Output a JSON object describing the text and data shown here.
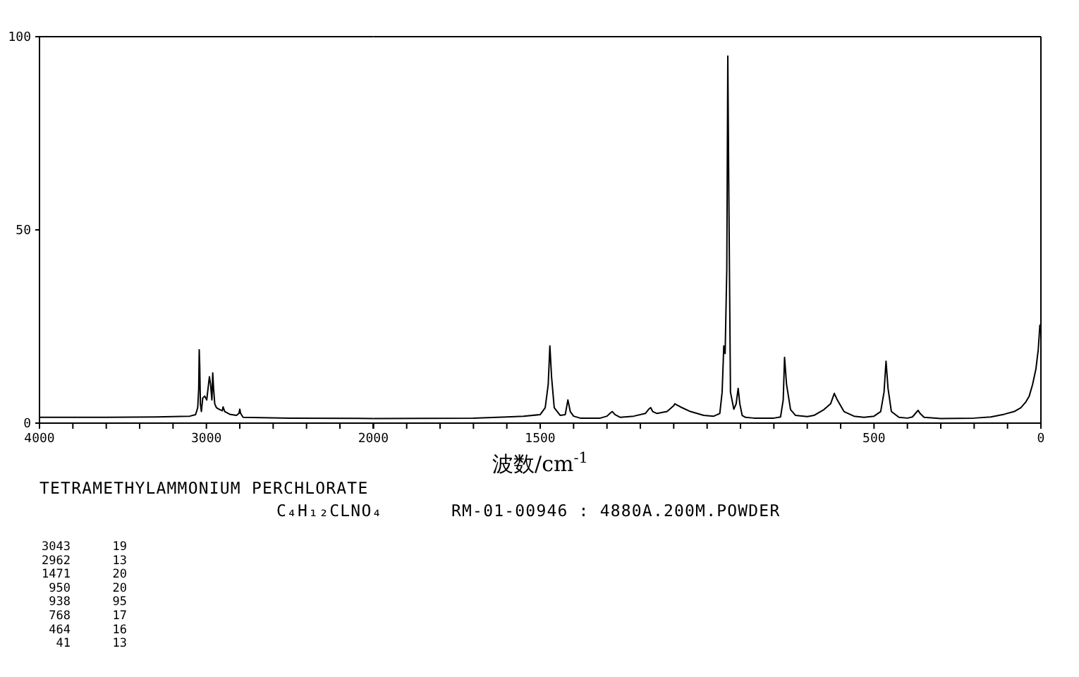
{
  "chart_data": [
    {
      "type": "line",
      "title": "TETRAMETHYLAMMONIUM PERCHLORATE",
      "subtitle": "C₄H₁₂CLNO₄",
      "annotations": [
        "RM-01-00946 : 4880A.200M.POWDER",
        "3043 19",
        "2962 13",
        "1471 20",
        "950 20",
        "938 95",
        "768 17",
        "464 16",
        "41 13"
      ],
      "xlim": [
        4000,
        2000
      ],
      "ylim": [
        0,
        100
      ],
      "xticks": [
        4000,
        {
          "value": 3800,
          "label": null
        },
        {
          "value": 3600,
          "label": null
        },
        {
          "value": 3400,
          "label": null
        },
        {
          "value": 3200,
          "label": null
        },
        3000,
        {
          "value": 2800,
          "label": null
        },
        {
          "value": 2600,
          "label": null
        },
        {
          "value": 2400,
          "label": null
        },
        {
          "value": 2200,
          "label": null
        },
        2000
      ],
      "yticks": [
        0,
        50,
        100
      ],
      "marker": "none",
      "line_style": "solid",
      "series": [
        {
          "color": "#000000",
          "x": [
            4000,
            3600,
            3300,
            3100,
            3065,
            3052,
            3046,
            3043,
            3040,
            3036,
            3030,
            3022,
            3010,
            2998,
            2990,
            2982,
            2975,
            2967,
            2962,
            2957,
            2950,
            2940,
            2920,
            2905,
            2900,
            2890,
            2860,
            2820,
            2805,
            2800,
            2795,
            2780,
            2500,
            2000
          ],
          "values": [
            1.5,
            1.5,
            1.6,
            1.8,
            2.2,
            4,
            9,
            19,
            15,
            5,
            3,
            6.5,
            7,
            6,
            9,
            12,
            10,
            6,
            13,
            9,
            5,
            4,
            3.5,
            3.2,
            4.2,
            3,
            2.3,
            2,
            2.5,
            3.6,
            2.5,
            1.5,
            1.3,
            1.2
          ]
        }
      ]
    },
    {
      "type": "line",
      "xlabel": "波数/cm$^{-1}$",
      "xlim": [
        2000,
        0
      ],
      "ylim": [
        0,
        100
      ],
      "tick_labels": "x",
      "xticks": [
        {
          "value": 1900,
          "label": null
        },
        {
          "value": 1800,
          "label": null
        },
        {
          "value": 1700,
          "label": null
        },
        {
          "value": 1600,
          "label": null
        },
        1500,
        {
          "value": 1400,
          "label": null
        },
        {
          "value": 1300,
          "label": null
        },
        {
          "value": 1200,
          "label": null
        },
        {
          "value": 1100,
          "label": null
        },
        {
          "value": 1000,
          "label": null
        },
        {
          "value": 900,
          "label": null
        },
        {
          "value": 800,
          "label": null
        },
        {
          "value": 700,
          "label": null
        },
        {
          "value": 600,
          "label": null
        },
        500,
        {
          "value": 400,
          "label": null
        },
        {
          "value": 300,
          "label": null
        },
        {
          "value": 200,
          "label": null
        },
        {
          "value": 100,
          "label": null
        },
        0
      ],
      "marker": "none",
      "line_style": "solid",
      "series": [
        {
          "color": "#000000",
          "x": [
            2000,
            1700,
            1600,
            1550,
            1500,
            1485,
            1476,
            1471,
            1466,
            1458,
            1440,
            1425,
            1417,
            1410,
            1400,
            1380,
            1320,
            1300,
            1290,
            1284,
            1276,
            1260,
            1220,
            1185,
            1175,
            1169,
            1163,
            1150,
            1120,
            1100,
            1097,
            1080,
            1050,
            1010,
            980,
            962,
            955,
            950,
            946,
            941,
            938,
            935,
            930,
            920,
            913,
            907,
            902,
            895,
            885,
            860,
            800,
            780,
            772,
            768,
            762,
            750,
            735,
            700,
            680,
            650,
            630,
            619,
            610,
            590,
            560,
            530,
            500,
            480,
            470,
            464,
            458,
            448,
            425,
            400,
            385,
            375,
            368,
            362,
            350,
            300,
            200,
            150,
            110,
            80,
            60,
            45,
            35,
            25,
            15,
            8,
            3
          ],
          "values": [
            1.2,
            1.3,
            1.6,
            1.8,
            2.2,
            4,
            10,
            20,
            12,
            4,
            2,
            2.2,
            6,
            3,
            1.8,
            1.3,
            1.3,
            1.8,
            2.6,
            3,
            2.2,
            1.5,
            1.8,
            2.5,
            3.6,
            4,
            3,
            2.5,
            3,
            4.5,
            5,
            4.2,
            3,
            2,
            1.8,
            2.5,
            8,
            20,
            18,
            40,
            95,
            60,
            8,
            3.6,
            5,
            9,
            5,
            2,
            1.5,
            1.3,
            1.3,
            1.6,
            6,
            17,
            10,
            3.5,
            2,
            1.7,
            2,
            3.5,
            5,
            7.7,
            6,
            3,
            1.8,
            1.5,
            1.8,
            3,
            8,
            16,
            9,
            3,
            1.5,
            1.3,
            1.6,
            2.6,
            3.3,
            2.5,
            1.5,
            1.2,
            1.3,
            1.6,
            2.3,
            3,
            4,
            5.5,
            7,
            10,
            14,
            19,
            25.5
          ]
        }
      ]
    }
  ]
}
